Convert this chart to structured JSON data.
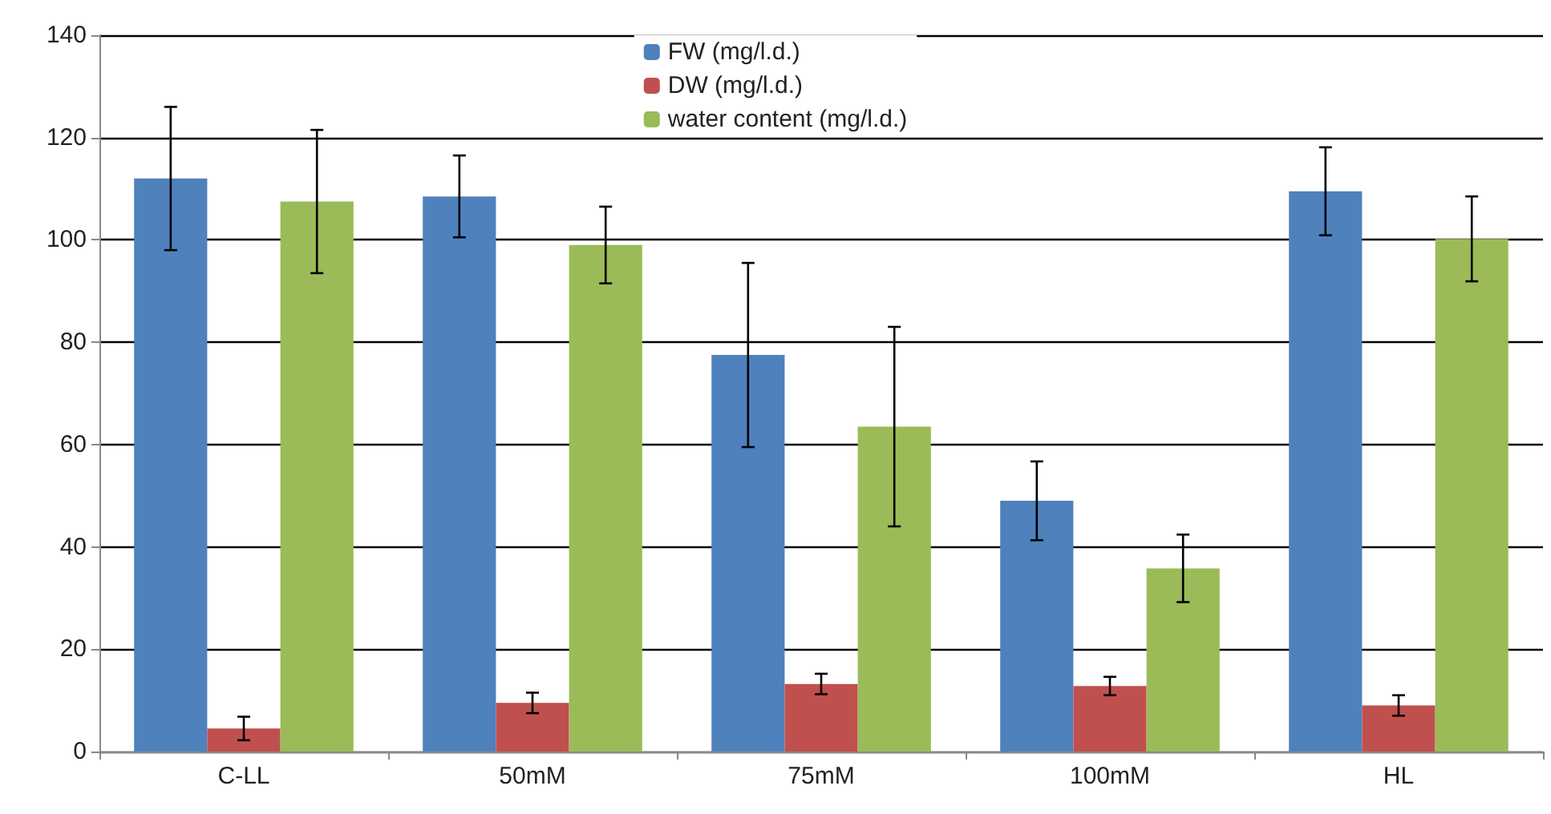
{
  "chart_data": {
    "type": "bar",
    "categories": [
      "C-LL",
      "50mM",
      "75mM",
      "100mM",
      "HL"
    ],
    "series": [
      {
        "name": "FW (mg/l.d.)",
        "color": "#4f81bd",
        "values": [
          112,
          108.5,
          77.5,
          49,
          109.5
        ],
        "errors": [
          14,
          8,
          18,
          7.7,
          8.6
        ]
      },
      {
        "name": "DW (mg/l.d.)",
        "color": "#c0504d",
        "values": [
          4.5,
          9.5,
          13.2,
          12.8,
          9
        ],
        "errors": [
          2.3,
          2,
          2,
          1.8,
          2
        ]
      },
      {
        "name": "water content (mg/l.d.)",
        "color": "#9bbb59",
        "values": [
          107.5,
          99,
          63.5,
          35.8,
          100.2
        ],
        "errors": [
          14,
          7.5,
          19.5,
          6.6,
          8.3
        ]
      }
    ],
    "ylim": [
      0,
      140
    ],
    "yticks": [
      0,
      20,
      40,
      60,
      80,
      100,
      120,
      140
    ],
    "grid": "y",
    "legend": "top"
  }
}
